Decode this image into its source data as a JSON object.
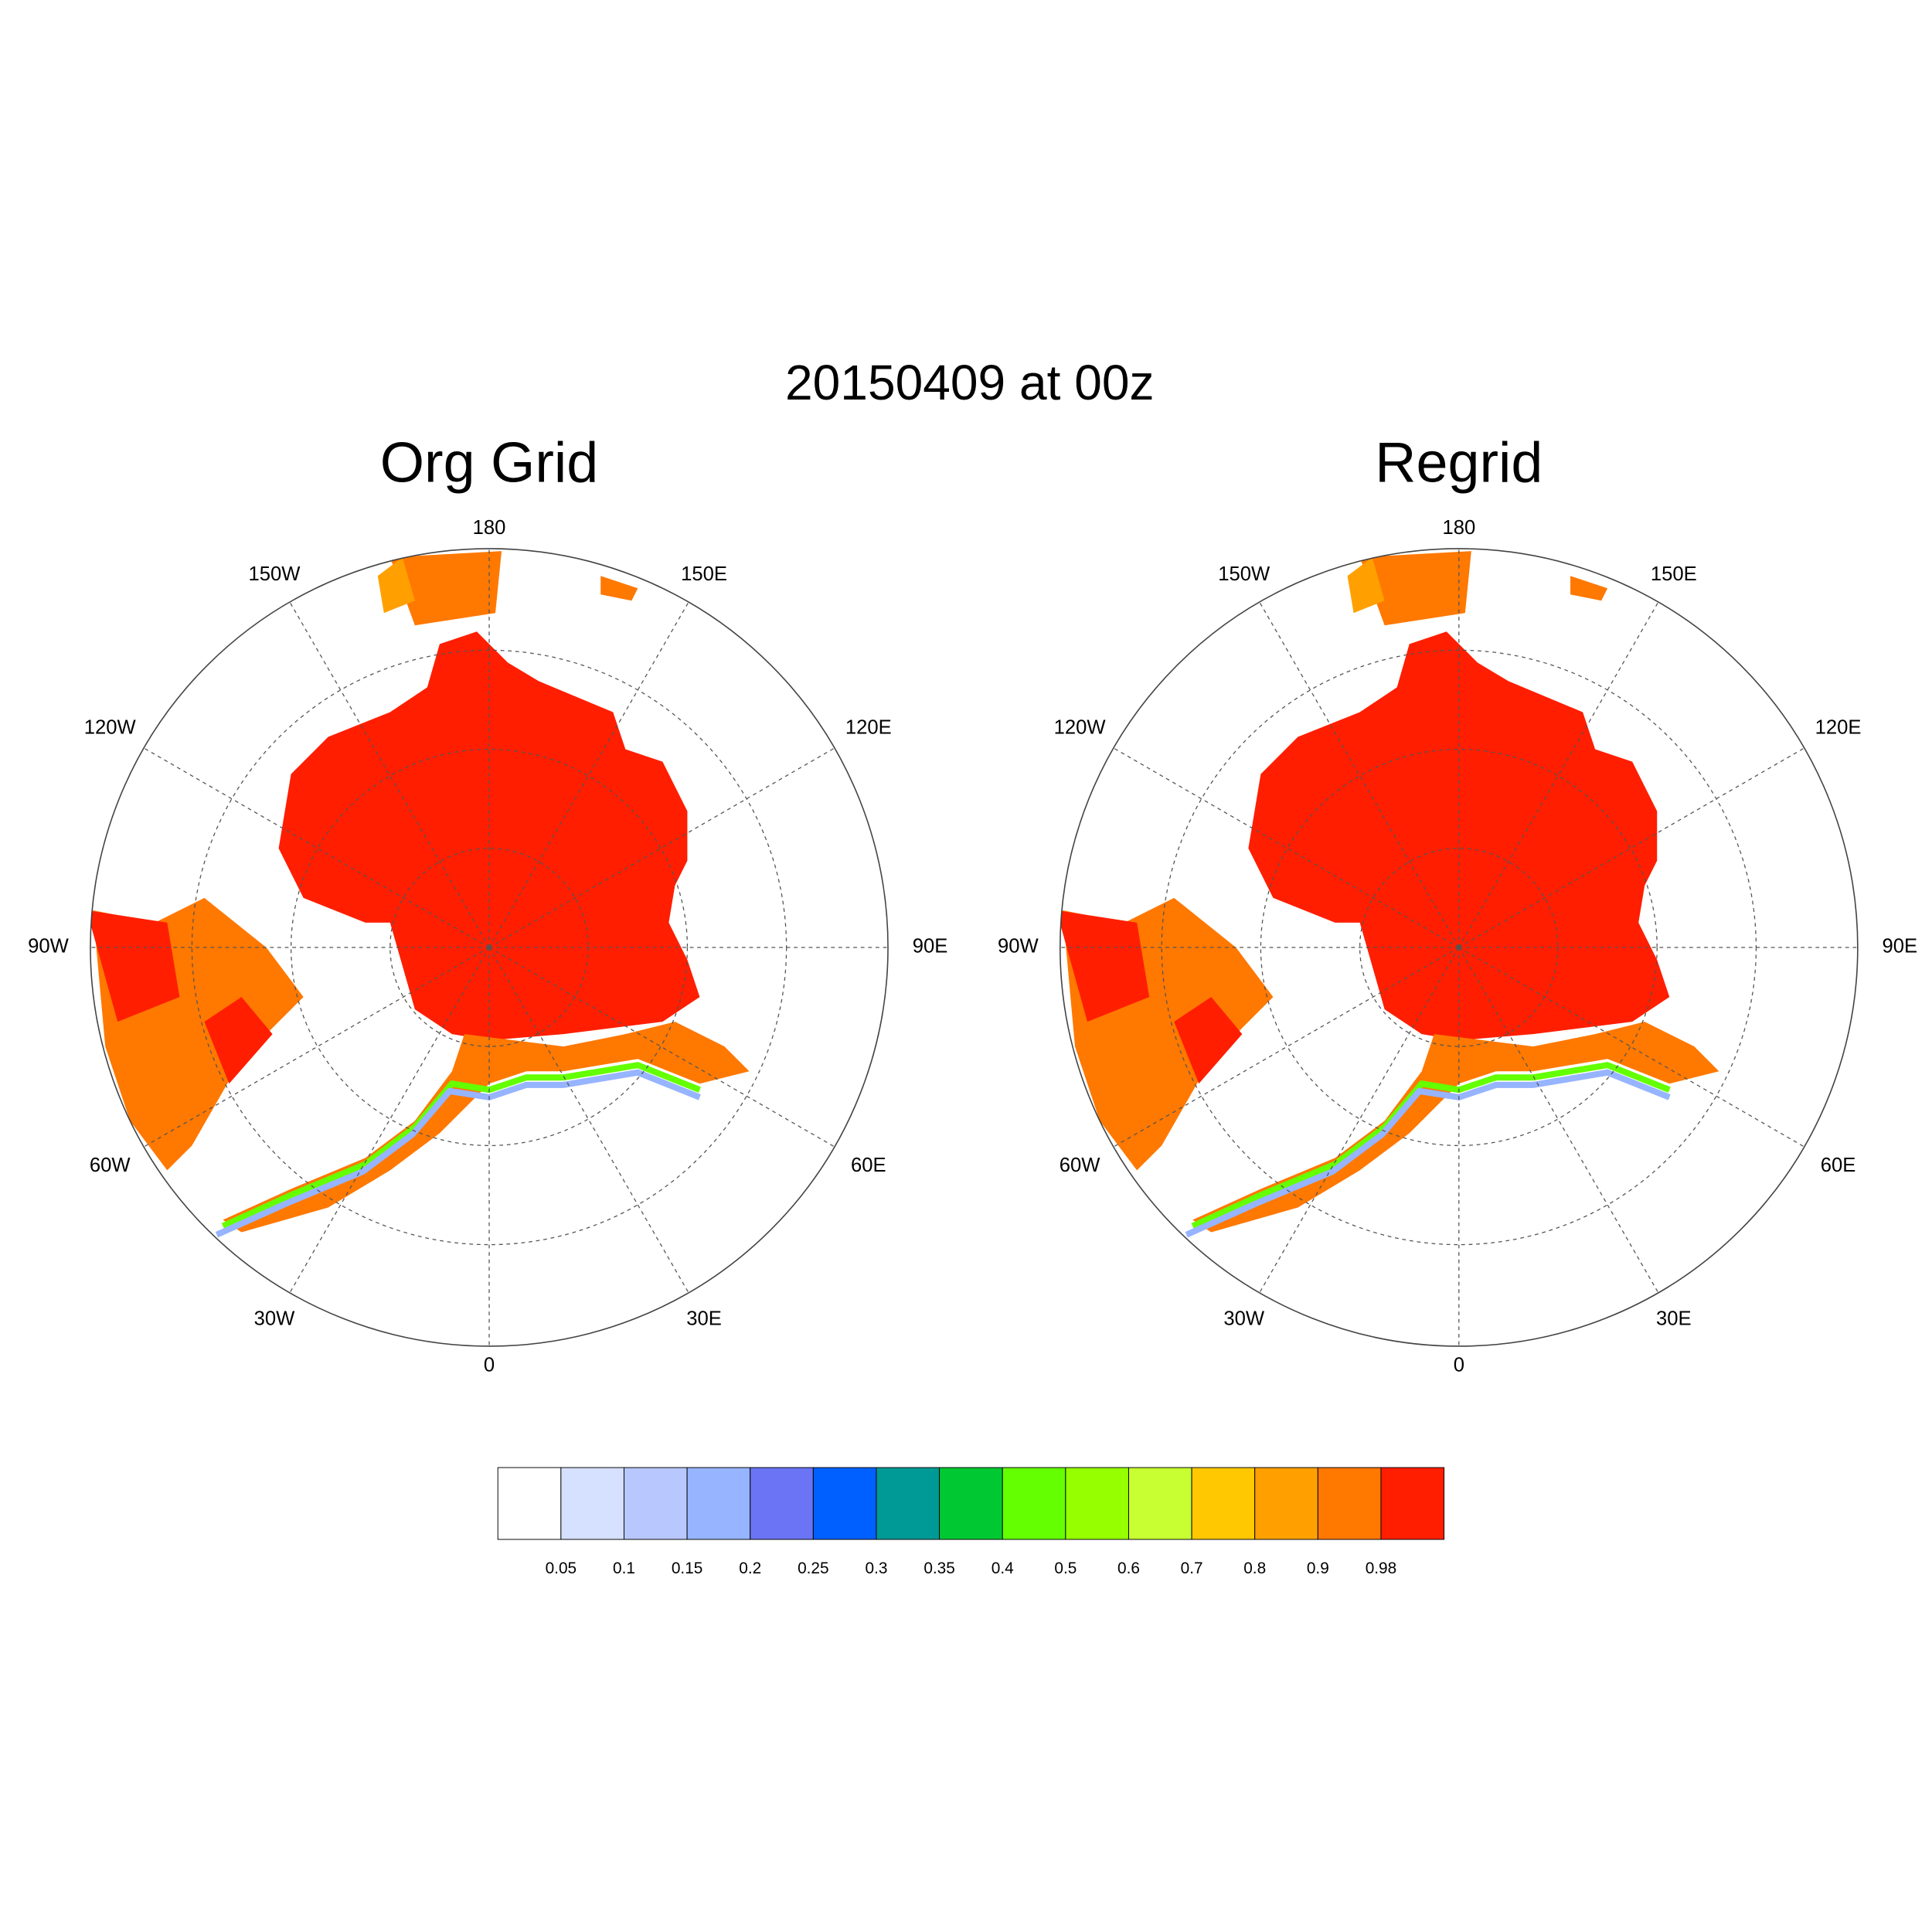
{
  "title": "20150409 at 00z",
  "panels": [
    {
      "title": "Org Grid"
    },
    {
      "title": "Regrid"
    }
  ],
  "lon_labels": [
    "0",
    "30E",
    "60E",
    "90E",
    "120E",
    "150E",
    "180",
    "150W",
    "120W",
    "90W",
    "60W",
    "30W"
  ],
  "colorbar": {
    "levels": [
      0.05,
      0.1,
      0.15,
      0.2,
      0.25,
      0.3,
      0.35,
      0.4,
      0.5,
      0.6,
      0.7,
      0.8,
      0.9,
      0.98
    ],
    "colors": [
      "#ffffff",
      "#d6e0ff",
      "#b8c8ff",
      "#96b4ff",
      "#6a74f4",
      "#0060ff",
      "#009a96",
      "#00c832",
      "#64ff00",
      "#96ff00",
      "#c8ff32",
      "#ffc800",
      "#ffa000",
      "#ff7800",
      "#ff1e00"
    ]
  }
}
